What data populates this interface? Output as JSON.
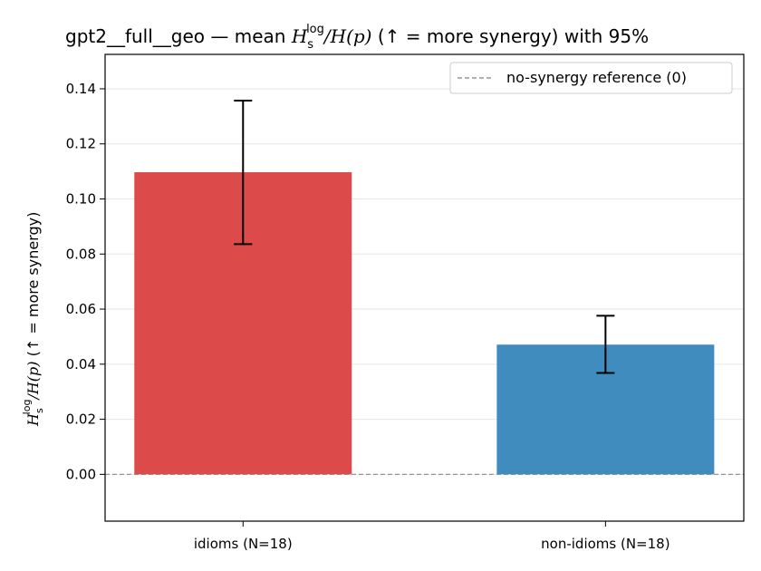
{
  "chart_data": {
    "type": "bar",
    "title": {
      "prefix": "gpt2__full__geo — mean ",
      "math_sym": "H",
      "math_sub": "s",
      "math_sup": "log",
      "math_den": "/H(p)",
      "suffix": "  (↑ = more synergy) with 95%"
    },
    "ylabel": {
      "math_sym": "H",
      "math_sub": "s",
      "math_sup": "log",
      "math_den": "/H(p)",
      "suffix": "  (↑ = more synergy)"
    },
    "xlabel": "",
    "categories": [
      "idioms (N=18)",
      "non-idioms (N=18)"
    ],
    "values": [
      0.1097,
      0.0471
    ],
    "error_low": [
      0.0836,
      0.0368
    ],
    "error_high": [
      0.1357,
      0.0576
    ],
    "colors": [
      "#dc4a4a",
      "#418cbf"
    ],
    "ylim": [
      -0.017,
      0.1525
    ],
    "yticks": [
      "0.00",
      "0.02",
      "0.04",
      "0.06",
      "0.08",
      "0.10",
      "0.12",
      "0.14"
    ],
    "grid": "horizontal",
    "reference_line": {
      "value": 0,
      "style": "dashed",
      "color": "#999999"
    },
    "legend": {
      "position": "top-right",
      "entries": [
        "no-synergy reference (0)"
      ]
    }
  }
}
